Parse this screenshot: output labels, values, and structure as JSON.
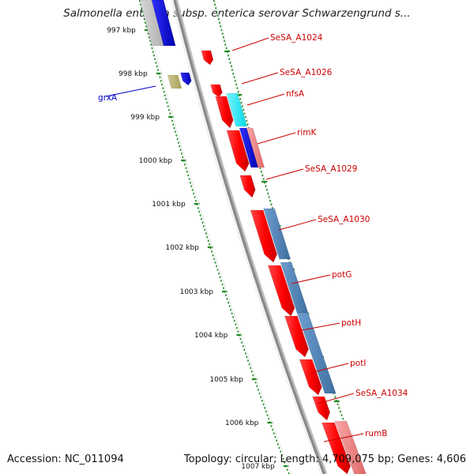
{
  "header": {
    "title": "Salmonella enterica subsp. enterica serovar Schwarzengrund s..."
  },
  "footer": {
    "accession": "Accession: NC_011094",
    "topology": "Topology: circular; Length: 4,709,075 bp; Genes: 4,606"
  },
  "ticks": [
    "997 kbp",
    "998 kbp",
    "999 kbp",
    "1000 kbp",
    "1001 kbp",
    "1002 kbp",
    "1003 kbp",
    "1004 kbp",
    "1005 kbp",
    "1006 kbp",
    "1007 kbp"
  ],
  "gene_labels": [
    "SeSA_A1024",
    "SeSA_A1026",
    "nfsA",
    "rimK",
    "SeSA_A1029",
    "SeSA_A1030",
    "potG",
    "potH",
    "potI",
    "SeSA_A1034",
    "rumB",
    "grxA"
  ],
  "colors": {
    "backbone": "#888888",
    "forward_gene": "#ff0000",
    "gene_label": "#cc0000",
    "reverse_gene": "#0000ff",
    "steelblue_feature": "#4f81bd",
    "cyan_feature": "#00e5ee",
    "pink_feature": "#f08080",
    "olive_feature": "#b8b070",
    "ruler_dots": "#228b22"
  }
}
